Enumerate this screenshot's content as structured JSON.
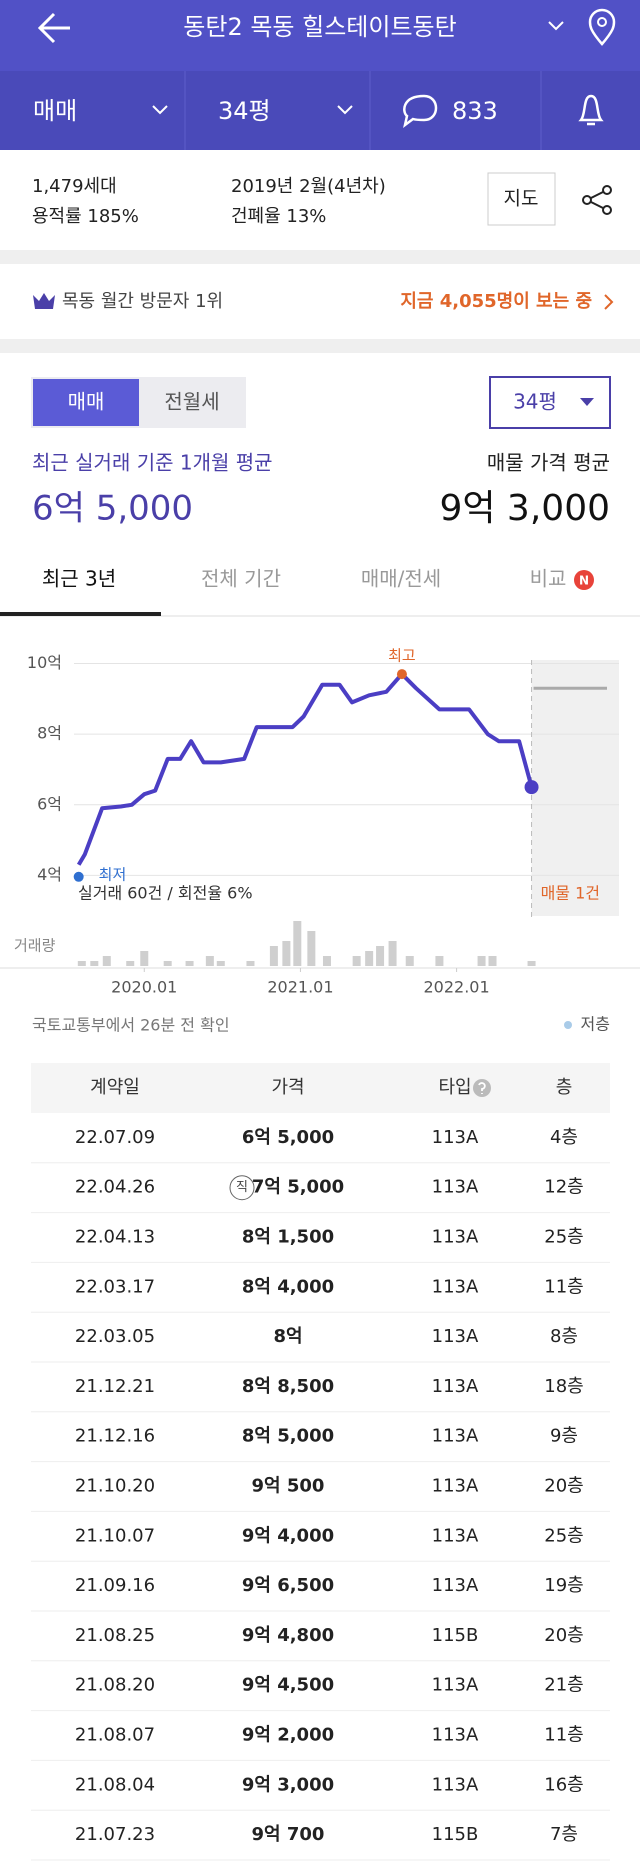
{
  "header": {
    "title": "동탄2 목동 힐스테이트동탄",
    "trade_type": "매매",
    "size": "34평",
    "comments": "833"
  },
  "info": {
    "households": "1,479세대",
    "far": "용적률 185%",
    "built": "2019년 2월(4년차)",
    "bcr": "건폐율 13%",
    "map_button": "지도"
  },
  "ranking": {
    "text": "목동 월간 방문자 1위",
    "viewers": "지금 4,055명이 보는 중"
  },
  "price": {
    "tabs": [
      "매매",
      "전월세"
    ],
    "size_select": "34평",
    "recent_label": "최근 실거래 기준 1개월 평균",
    "recent_value": "6억 5,000",
    "listing_label": "매물 가격 평균",
    "listing_value": "9억 3,000"
  },
  "period_tabs": [
    "최근 3년",
    "전체 기간",
    "매매/전세",
    "비교"
  ],
  "new_badge": "N",
  "chart_data": {
    "type": "line",
    "x": [
      2019.58,
      2019.62,
      2019.73,
      2019.85,
      2019.92,
      2020.0,
      2020.07,
      2020.15,
      2020.23,
      2020.3,
      2020.38,
      2020.49,
      2020.64,
      2020.72,
      2020.95,
      2021.02,
      2021.14,
      2021.25,
      2021.33,
      2021.44,
      2021.55,
      2021.65,
      2021.74,
      2021.89,
      2022.08,
      2022.2,
      2022.27,
      2022.4,
      2022.48
    ],
    "series": [
      {
        "color": "#4b3ec4",
        "values": [
          4.3,
          4.6,
          5.9,
          5.95,
          6.0,
          6.3,
          6.4,
          7.3,
          7.3,
          7.8,
          7.2,
          7.2,
          7.3,
          8.2,
          8.2,
          8.5,
          9.4,
          9.4,
          8.9,
          9.1,
          9.2,
          9.7,
          9.3,
          8.7,
          8.7,
          8.0,
          7.8,
          7.8,
          6.5
        ]
      }
    ],
    "xlim": [
      2019.55,
      2023.04
    ],
    "ylim": [
      2.85,
      10.1
    ],
    "yticks": [
      {
        "value": 10,
        "label": "10억"
      },
      {
        "value": 8,
        "label": "8억"
      },
      {
        "value": 6,
        "label": "6억"
      },
      {
        "value": 4,
        "label": "4억"
      }
    ],
    "xticks": [
      {
        "value": 2020,
        "label": "2020.01"
      },
      {
        "value": 2021,
        "label": "2021.01"
      },
      {
        "value": 2022,
        "label": "2022.01"
      }
    ],
    "grid": true,
    "high_label": "최고",
    "high_color": "#e0662a",
    "low_label": "최저",
    "low_color": "#2f6fd0",
    "summary": "실거래 60건 / 회전율 6%",
    "listing_label": "매물 1건",
    "listing_value": 9.3,
    "listing_color": "#aaaaaa",
    "volume_label": "거래량",
    "volume": {
      "color": "#cfcfcf",
      "ylim": [
        0,
        9
      ],
      "x": [
        2019.6,
        2019.68,
        2019.76,
        2019.91,
        2020.0,
        2020.15,
        2020.29,
        2020.42,
        2020.49,
        2020.68,
        2020.83,
        2020.91,
        2020.98,
        2021.07,
        2021.17,
        2021.36,
        2021.44,
        2021.51,
        2021.59,
        2021.7,
        2021.89,
        2022.16,
        2022.23,
        2022.48
      ],
      "values": [
        1,
        1,
        2,
        1,
        3,
        1,
        1,
        2,
        1,
        1,
        4,
        5,
        9,
        7,
        2,
        2,
        3,
        4,
        5,
        2,
        2,
        2,
        2,
        1
      ]
    },
    "source": "국토교통부에서 26분 전 확인",
    "legend": {
      "name": "저층",
      "color": "#a9cbe8"
    }
  },
  "table": {
    "columns": [
      "계약일",
      "가격",
      "타입",
      "층"
    ],
    "rows": [
      {
        "date": "22.07.09",
        "price": "6억 5,000",
        "type": "113A",
        "floor": "4층"
      },
      {
        "date": "22.04.26",
        "price": "7억 5,000",
        "type": "113A",
        "floor": "12층",
        "badge": "직"
      },
      {
        "date": "22.04.13",
        "price": "8억 1,500",
        "type": "113A",
        "floor": "25층"
      },
      {
        "date": "22.03.17",
        "price": "8억 4,000",
        "type": "113A",
        "floor": "11층"
      },
      {
        "date": "22.03.05",
        "price": "8억",
        "type": "113A",
        "floor": "8층"
      },
      {
        "date": "21.12.21",
        "price": "8억 8,500",
        "type": "113A",
        "floor": "18층"
      },
      {
        "date": "21.12.16",
        "price": "8억 5,000",
        "type": "113A",
        "floor": "9층"
      },
      {
        "date": "21.10.20",
        "price": "9억 500",
        "type": "113A",
        "floor": "20층"
      },
      {
        "date": "21.10.07",
        "price": "9억 4,000",
        "type": "113A",
        "floor": "25층"
      },
      {
        "date": "21.09.16",
        "price": "9억 6,500",
        "type": "113A",
        "floor": "19층"
      },
      {
        "date": "21.08.25",
        "price": "9억 4,800",
        "type": "115B",
        "floor": "20층"
      },
      {
        "date": "21.08.20",
        "price": "9억 4,500",
        "type": "113A",
        "floor": "21층"
      },
      {
        "date": "21.08.07",
        "price": "9억 2,000",
        "type": "113A",
        "floor": "11층"
      },
      {
        "date": "21.08.04",
        "price": "9억 3,000",
        "type": "113A",
        "floor": "16층"
      },
      {
        "date": "21.07.23",
        "price": "9억 700",
        "type": "115B",
        "floor": "7층"
      }
    ]
  }
}
